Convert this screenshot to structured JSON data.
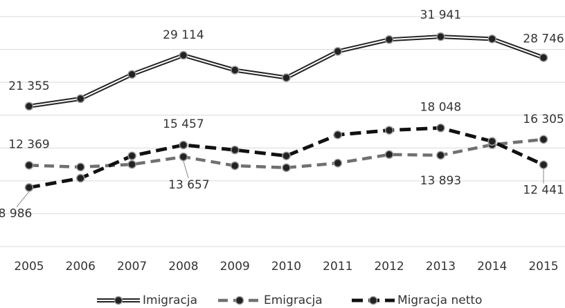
{
  "chart_data": {
    "type": "line",
    "categories": [
      "2005",
      "2006",
      "2007",
      "2008",
      "2009",
      "2010",
      "2011",
      "2012",
      "2013",
      "2014",
      "2015"
    ],
    "series": [
      {
        "name": "Imigracja",
        "color": "#222222",
        "values": [
          21355,
          22500,
          26200,
          29114,
          26850,
          25700,
          29700,
          31500,
          31941,
          31600,
          28746
        ],
        "value_labels": [
          "21 355",
          null,
          null,
          "29 114",
          null,
          null,
          null,
          null,
          "31 941",
          null,
          "28 746"
        ]
      },
      {
        "name": "Emigracja",
        "color": "#707070",
        "values": [
          12369,
          12100,
          12500,
          13657,
          12300,
          12000,
          12700,
          14000,
          13893,
          15500,
          16305
        ],
        "value_labels": [
          "12 369",
          null,
          null,
          "13 657",
          null,
          null,
          null,
          null,
          "13 893",
          null,
          "16 305"
        ]
      },
      {
        "name": "Migracja netto",
        "color": "#111111",
        "values": [
          8986,
          10400,
          13800,
          15457,
          14700,
          13800,
          17000,
          17700,
          18048,
          16000,
          12441
        ],
        "value_labels": [
          "8 986",
          null,
          null,
          "15 457",
          null,
          null,
          null,
          null,
          "18 048",
          null,
          "12 441"
        ]
      }
    ],
    "ylim": [
      0,
      35000
    ],
    "yticks": [
      0,
      5000,
      10000,
      15000,
      20000,
      25000,
      30000,
      35000
    ],
    "grid": true,
    "legend": "bottom"
  }
}
